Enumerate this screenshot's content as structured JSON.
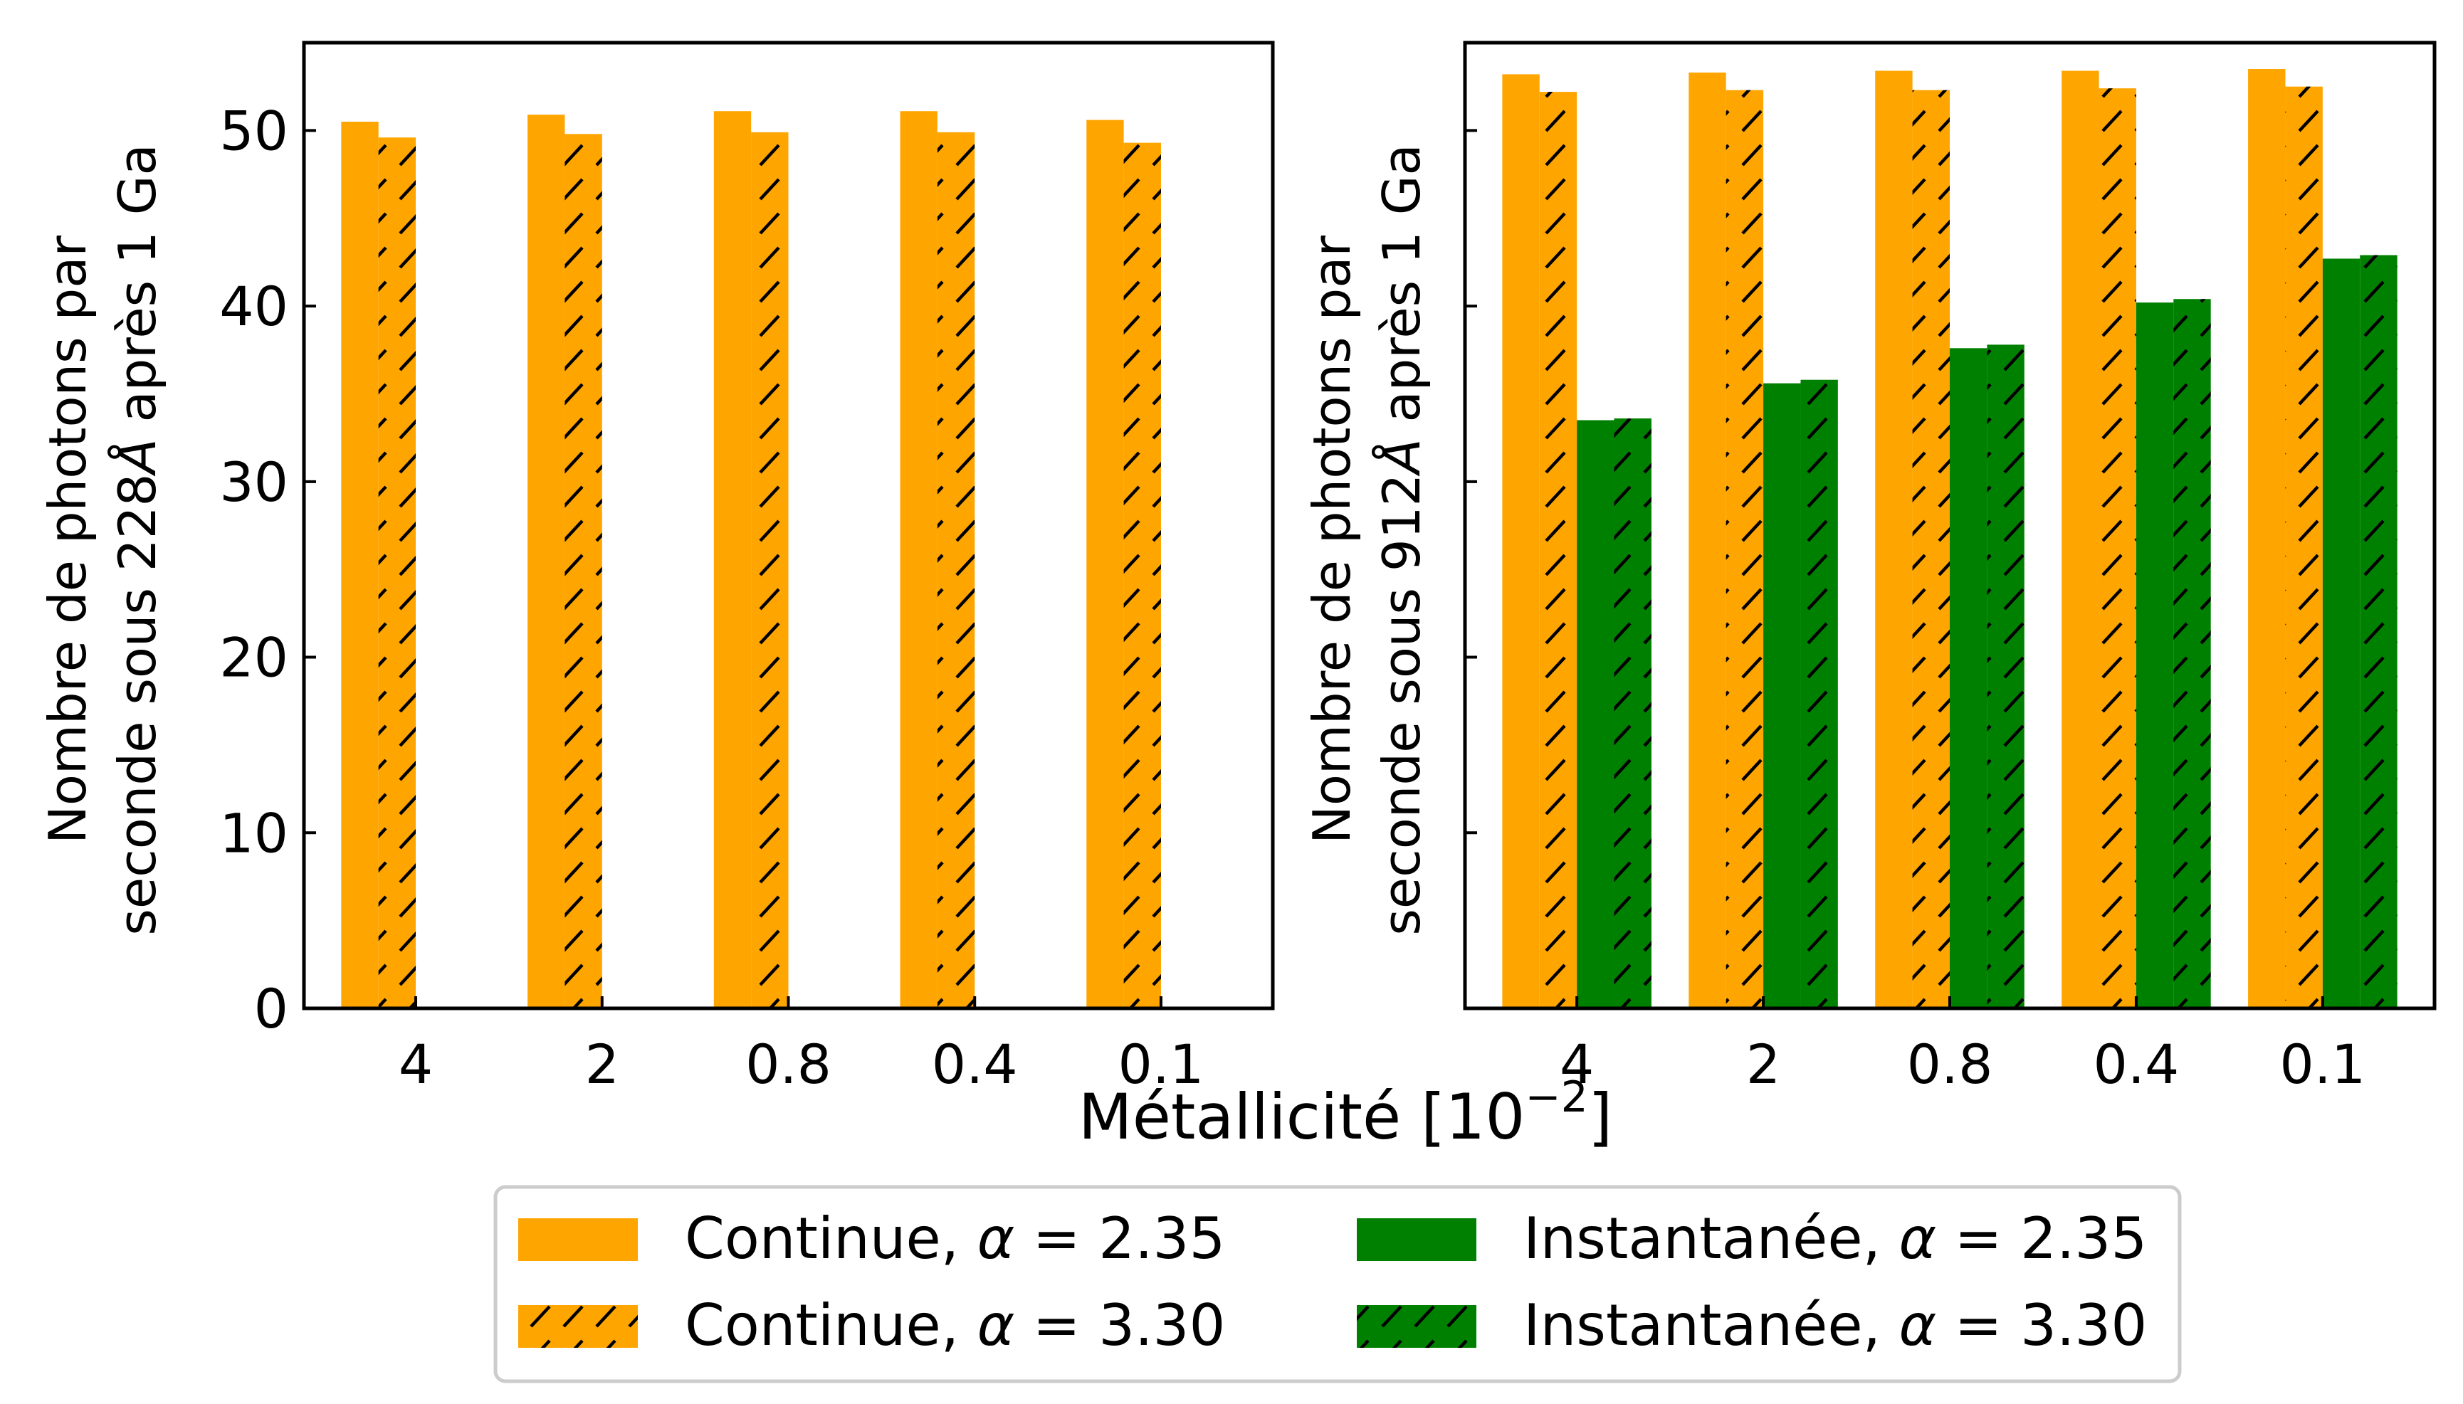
{
  "figure": {
    "xlabel": "Métallicité [10",
    "xlabel_exponent": "−2",
    "xlabel_suffix": "]"
  },
  "legend": {
    "placement": "bottom-center",
    "ncol": 2,
    "entries": [
      {
        "prefix": "Continue, ",
        "alpha": "α",
        "suffix": " = 2.35",
        "color": "#FFA500",
        "hatched": false
      },
      {
        "prefix": "Instantanée, ",
        "alpha": "α",
        "suffix": " = 2.35",
        "color": "#008000",
        "hatched": false
      },
      {
        "prefix": "Continue, ",
        "alpha": "α",
        "suffix": " = 3.30",
        "color": "#FFA500",
        "hatched": true
      },
      {
        "prefix": "Instantanée, ",
        "alpha": "α",
        "suffix": " = 3.30",
        "color": "#008000",
        "hatched": true
      }
    ]
  },
  "chart_data": [
    {
      "type": "bar",
      "ylabel_line1": "Nombre de photons par",
      "ylabel_line2": "seconde sous 228",
      "ylabel_unit": "Å",
      "ylabel_line2_suffix": " après 1 Ga",
      "categories": [
        "4",
        "2",
        "0.8",
        "0.4",
        "0.1"
      ],
      "ylim": [
        0,
        55
      ],
      "yticks": [
        0,
        10,
        20,
        30,
        40,
        50
      ],
      "show_ytick_labels": true,
      "series": [
        {
          "name": "Continue, α = 2.35",
          "color": "#FFA500",
          "hatched": false,
          "values": [
            50.5,
            50.9,
            51.1,
            51.1,
            50.6
          ]
        },
        {
          "name": "Continue, α = 3.30",
          "color": "#FFA500",
          "hatched": true,
          "values": [
            49.6,
            49.8,
            49.9,
            49.9,
            49.3
          ]
        },
        {
          "name": "Instantanée, α = 2.35",
          "color": "#008000",
          "hatched": false,
          "values": [
            0,
            0,
            0,
            0,
            0
          ]
        },
        {
          "name": "Instantanée, α = 3.30",
          "color": "#008000",
          "hatched": true,
          "values": [
            0,
            0,
            0,
            0,
            0
          ]
        }
      ]
    },
    {
      "type": "bar",
      "ylabel_line1": "Nombre de photons par",
      "ylabel_line2": "seconde sous 912",
      "ylabel_unit": "Å",
      "ylabel_line2_suffix": " après 1 Ga",
      "categories": [
        "4",
        "2",
        "0.8",
        "0.4",
        "0.1"
      ],
      "ylim": [
        0,
        55
      ],
      "yticks": [
        10,
        20,
        30,
        40,
        50
      ],
      "show_ytick_labels": false,
      "series": [
        {
          "name": "Continue, α = 2.35",
          "color": "#FFA500",
          "hatched": false,
          "values": [
            53.2,
            53.3,
            53.4,
            53.4,
            53.5
          ]
        },
        {
          "name": "Continue, α = 3.30",
          "color": "#FFA500",
          "hatched": true,
          "values": [
            52.2,
            52.3,
            52.3,
            52.4,
            52.5
          ]
        },
        {
          "name": "Instantanée, α = 2.35",
          "color": "#008000",
          "hatched": false,
          "values": [
            33.5,
            35.6,
            37.6,
            40.2,
            42.7
          ]
        },
        {
          "name": "Instantanée, α = 3.30",
          "color": "#008000",
          "hatched": true,
          "values": [
            33.6,
            35.8,
            37.8,
            40.4,
            42.9
          ]
        }
      ]
    }
  ]
}
